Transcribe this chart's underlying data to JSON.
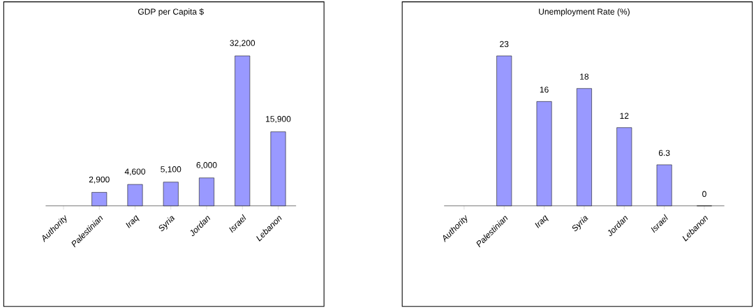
{
  "chart_data": [
    {
      "type": "bar",
      "title": "GDP per Capita $",
      "categories": [
        "Authority",
        "Palestinian",
        "Iraq",
        "Syria",
        "Jordan",
        "Israel",
        "Lebanon"
      ],
      "values": [
        null,
        2900,
        4600,
        5100,
        6000,
        32200,
        15900
      ],
      "value_labels": [
        null,
        "2,900",
        "4,600",
        "5,100",
        "6,000",
        "32,200",
        "15,900"
      ],
      "color": "#9999ff"
    },
    {
      "type": "bar",
      "title": "Unemployment Rate (%)",
      "categories": [
        "Authority",
        "Palestinian",
        "Iraq",
        "Syria",
        "Jordan",
        "Israel",
        "Lebanon"
      ],
      "values": [
        null,
        23,
        16,
        18,
        12,
        6.3,
        0
      ],
      "data_labels": true,
      "color": "#9999ff"
    }
  ]
}
